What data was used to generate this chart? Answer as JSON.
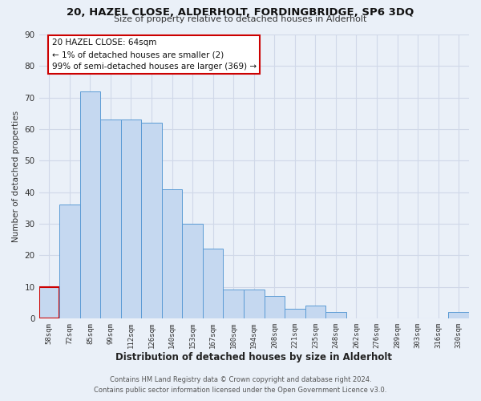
{
  "title": "20, HAZEL CLOSE, ALDERHOLT, FORDINGBRIDGE, SP6 3DQ",
  "subtitle": "Size of property relative to detached houses in Alderholt",
  "xlabel": "Distribution of detached houses by size in Alderholt",
  "ylabel": "Number of detached properties",
  "bar_labels": [
    "58sqm",
    "72sqm",
    "85sqm",
    "99sqm",
    "112sqm",
    "126sqm",
    "140sqm",
    "153sqm",
    "167sqm",
    "180sqm",
    "194sqm",
    "208sqm",
    "221sqm",
    "235sqm",
    "248sqm",
    "262sqm",
    "276sqm",
    "289sqm",
    "303sqm",
    "316sqm",
    "330sqm"
  ],
  "bar_values": [
    10,
    36,
    72,
    63,
    63,
    62,
    41,
    30,
    22,
    9,
    9,
    7,
    3,
    4,
    2,
    0,
    0,
    0,
    0,
    0,
    2
  ],
  "bar_color": "#c5d8f0",
  "bar_edge_color": "#5b9bd5",
  "highlight_bar_index": 0,
  "highlight_bar_edge_color": "#cc0000",
  "ylim": [
    0,
    90
  ],
  "yticks": [
    0,
    10,
    20,
    30,
    40,
    50,
    60,
    70,
    80,
    90
  ],
  "annotation_title": "20 HAZEL CLOSE: 64sqm",
  "annotation_line1": "← 1% of detached houses are smaller (2)",
  "annotation_line2": "99% of semi-detached houses are larger (369) →",
  "annotation_box_color": "#ffffff",
  "annotation_box_edge_color": "#cc0000",
  "grid_color": "#d0d8e8",
  "bg_color": "#eaf0f8",
  "footer_line1": "Contains HM Land Registry data © Crown copyright and database right 2024.",
  "footer_line2": "Contains public sector information licensed under the Open Government Licence v3.0."
}
